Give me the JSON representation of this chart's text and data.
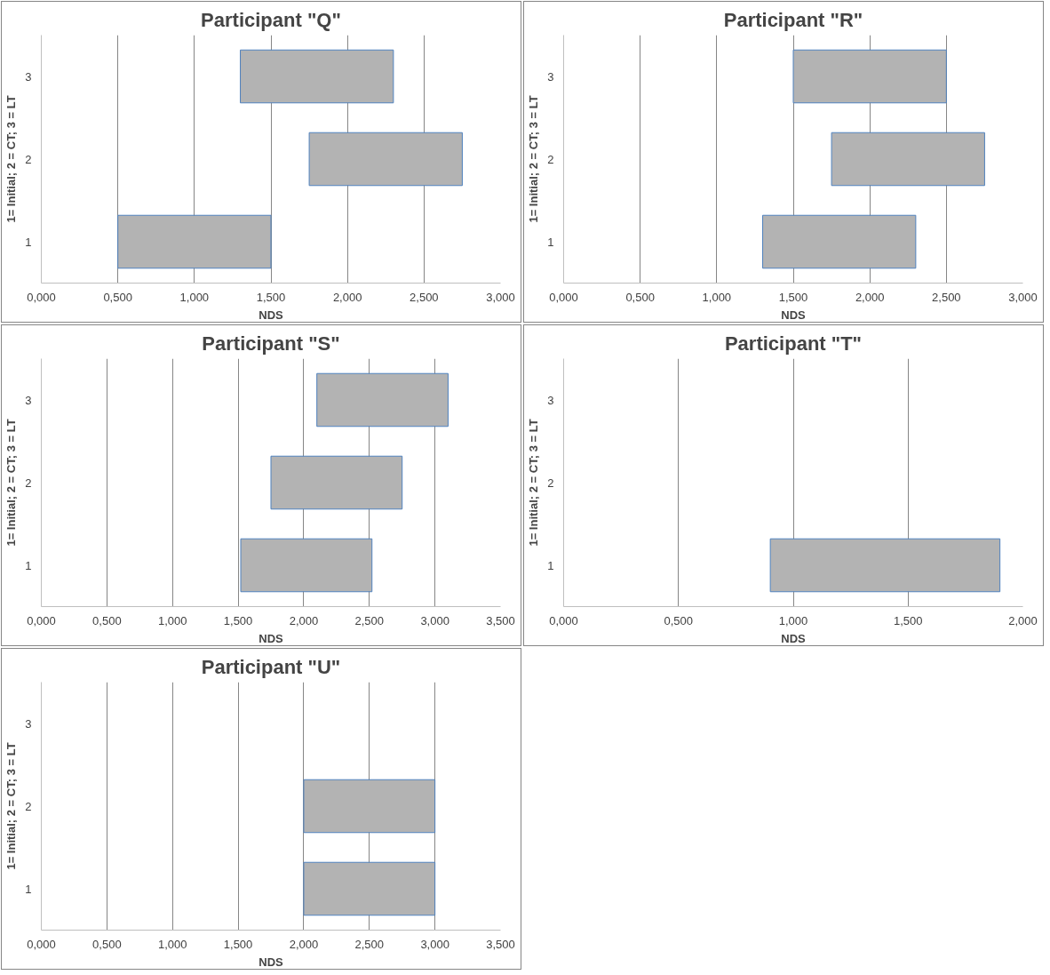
{
  "chart_data": [
    {
      "type": "bar",
      "orientation": "horizontal",
      "title": "Participant \"Q\"",
      "xlabel": "NDS",
      "ylabel": "1= Initial; 2 = CT; 3 = LT",
      "categories": [
        "3",
        "2",
        "1"
      ],
      "color": "#b3b3b3",
      "values": [
        1.0,
        1.0,
        1.0
      ],
      "base": [
        1.3,
        1.75,
        0.5
      ],
      "xlim": [
        0,
        3
      ],
      "xticks": [
        {
          "value": 0,
          "label": "0,000"
        },
        {
          "value": 0.5,
          "label": "0,500"
        },
        {
          "value": 1,
          "label": "1,000"
        },
        {
          "value": 1.5,
          "label": "1,500"
        },
        {
          "value": 2,
          "label": "2,000"
        },
        {
          "value": 2.5,
          "label": "2,500"
        },
        {
          "value": 3,
          "label": "3,000"
        }
      ],
      "grid": "x"
    },
    {
      "type": "bar",
      "orientation": "horizontal",
      "title": "Participant \"R\"",
      "xlabel": "NDS",
      "ylabel": "1= Initial; 2 = CT; 3 = LT",
      "categories": [
        "3",
        "2",
        "1"
      ],
      "color": "#b3b3b3",
      "values": [
        1.0,
        1.0,
        1.0
      ],
      "base": [
        1.5,
        1.75,
        1.3
      ],
      "xlim": [
        0,
        3
      ],
      "xticks": [
        {
          "value": 0,
          "label": "0,000"
        },
        {
          "value": 0.5,
          "label": "0,500"
        },
        {
          "value": 1,
          "label": "1,000"
        },
        {
          "value": 1.5,
          "label": "1,500"
        },
        {
          "value": 2,
          "label": "2,000"
        },
        {
          "value": 2.5,
          "label": "2,500"
        },
        {
          "value": 3,
          "label": "3,000"
        }
      ],
      "grid": "x"
    },
    {
      "type": "bar",
      "orientation": "horizontal",
      "title": "Participant \"S\"",
      "xlabel": "NDS",
      "ylabel": "1= Initial; 2 = CT; 3 = LT",
      "categories": [
        "3",
        "2",
        "1"
      ],
      "color": "#b3b3b3",
      "values": [
        1.0,
        1.0,
        1.0
      ],
      "base": [
        2.1,
        1.75,
        1.52
      ],
      "xlim": [
        0,
        3.5
      ],
      "xticks": [
        {
          "value": 0,
          "label": "0,000"
        },
        {
          "value": 0.5,
          "label": "0,500"
        },
        {
          "value": 1,
          "label": "1,000"
        },
        {
          "value": 1.5,
          "label": "1,500"
        },
        {
          "value": 2,
          "label": "2,000"
        },
        {
          "value": 2.5,
          "label": "2,500"
        },
        {
          "value": 3,
          "label": "3,000"
        },
        {
          "value": 3.5,
          "label": "3,500"
        }
      ],
      "grid": "x"
    },
    {
      "type": "bar",
      "orientation": "horizontal",
      "title": "Participant \"T\"",
      "xlabel": "NDS",
      "ylabel": "1= Initial; 2 = CT; 3 = LT",
      "categories": [
        "3",
        "2",
        "1"
      ],
      "color": "#b3b3b3",
      "values": [
        null,
        null,
        1.0
      ],
      "base": [
        null,
        null,
        0.9
      ],
      "xlim": [
        0,
        2
      ],
      "xticks": [
        {
          "value": 0,
          "label": "0,000"
        },
        {
          "value": 0.5,
          "label": "0,500"
        },
        {
          "value": 1,
          "label": "1,000"
        },
        {
          "value": 1.5,
          "label": "1,500"
        },
        {
          "value": 2,
          "label": "2,000"
        }
      ],
      "grid": "x"
    },
    {
      "type": "bar",
      "orientation": "horizontal",
      "title": "Participant \"U\"",
      "xlabel": "NDS",
      "ylabel": "1= Initial; 2 = CT; 3 = LT",
      "categories": [
        "3",
        "2",
        "1"
      ],
      "color": "#b3b3b3",
      "values": [
        null,
        1.0,
        1.0
      ],
      "base": [
        null,
        2.0,
        2.0
      ],
      "xlim": [
        0,
        3.5
      ],
      "xticks": [
        {
          "value": 0,
          "label": "0,000"
        },
        {
          "value": 0.5,
          "label": "0,500"
        },
        {
          "value": 1,
          "label": "1,000"
        },
        {
          "value": 1.5,
          "label": "1,500"
        },
        {
          "value": 2,
          "label": "2,000"
        },
        {
          "value": 2.5,
          "label": "2,500"
        },
        {
          "value": 3,
          "label": "3,000"
        },
        {
          "value": 3.5,
          "label": "3,500"
        }
      ],
      "grid": "x"
    }
  ]
}
